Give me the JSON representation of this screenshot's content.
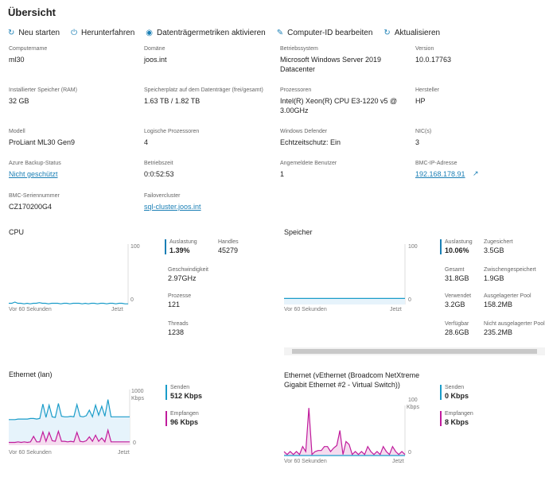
{
  "title": "Übersicht",
  "toolbar": [
    {
      "label": "Neu starten",
      "icon": "restart-icon"
    },
    {
      "label": "Herunterfahren",
      "icon": "power-icon"
    },
    {
      "label": "Datenträgermetriken aktivieren",
      "icon": "disk-metrics-icon"
    },
    {
      "label": "Computer-ID bearbeiten",
      "icon": "pencil-icon"
    },
    {
      "label": "Aktualisieren",
      "icon": "refresh-icon"
    }
  ],
  "props": [
    {
      "label": "Computername",
      "value": "ml30"
    },
    {
      "label": "Domäne",
      "value": "joos.int"
    },
    {
      "label": "Betriebssystem",
      "value": "Microsoft Windows Server 2019 Datacenter"
    },
    {
      "label": "Version",
      "value": "10.0.17763"
    },
    {
      "label": "Installierter Speicher (RAM)",
      "value": "32 GB"
    },
    {
      "label": "Speicherplatz auf dem Datenträger (frei/gesamt)",
      "value": "1.63 TB / 1.82 TB"
    },
    {
      "label": "Prozessoren",
      "value": "Intel(R) Xeon(R) CPU E3-1220 v5 @ 3.00GHz"
    },
    {
      "label": "Hersteller",
      "value": "HP"
    },
    {
      "label": "Modell",
      "value": "ProLiant ML30 Gen9"
    },
    {
      "label": "Logische Prozessoren",
      "value": "4"
    },
    {
      "label": "Windows Defender",
      "value": "Echtzeitschutz: Ein"
    },
    {
      "label": "NIC(s)",
      "value": "3"
    },
    {
      "label": "Azure Backup-Status",
      "value": "Nicht geschützt",
      "link": true
    },
    {
      "label": "Betriebszeit",
      "value": "0:0:52:53"
    },
    {
      "label": "Angemeldete Benutzer",
      "value": "1"
    },
    {
      "label": "BMC-IP-Adresse",
      "value": "192.168.178.91",
      "link": true
    },
    {
      "label": "BMC-Seriennummer",
      "value": "CZ170200G4"
    },
    {
      "label": "Failovercluster",
      "value": "sql-cluster.joos.int",
      "link": true
    }
  ],
  "cpu": {
    "title": "CPU",
    "ymax": "100",
    "ymin": "0",
    "from": "Vor 60 Sekunden",
    "to": "Jetzt",
    "stats": {
      "auslastung_label": "Auslastung",
      "auslastung": "1.39%",
      "handles_label": "Handles",
      "handles": "45279",
      "speed_label": "Geschwindigkeit",
      "speed": "2.97GHz",
      "proc_label": "Prozesse",
      "proc": "121",
      "threads_label": "Threads",
      "threads": "1238"
    },
    "series": [
      2,
      2,
      4,
      2,
      2,
      1,
      2,
      1,
      2,
      2,
      3,
      2,
      2,
      1,
      2,
      2,
      2,
      1,
      2,
      2,
      1,
      2,
      2,
      2,
      1,
      2,
      1,
      2,
      2,
      1,
      2,
      2,
      1,
      2,
      2,
      1,
      2,
      2,
      1,
      1
    ]
  },
  "mem": {
    "title": "Speicher",
    "ymax": "100",
    "ymin": "0",
    "from": "Vor 60 Sekunden",
    "to": "Jetzt",
    "stats": {
      "auslastung_label": "Auslastung",
      "auslastung": "10.06%",
      "zug_label": "Zugesichert",
      "zug": "3.5GB",
      "ges_label": "Gesamt",
      "ges": "31.8GB",
      "zw_label": "Zwischengespeichert",
      "zw": "1.9GB",
      "verw_label": "Verwendet",
      "verw": "3.2GB",
      "ap_label": "Ausgelagerter Pool",
      "ap": "158.2MB",
      "verf_label": "Verfügbar",
      "verf": "28.6GB",
      "nap_label": "Nicht ausgelagerter Pool",
      "nap": "235.2MB"
    },
    "series": [
      10,
      10,
      10,
      10,
      10,
      10,
      10,
      10,
      10,
      10,
      10,
      10,
      10,
      10,
      10,
      10,
      10,
      10,
      10,
      10,
      10,
      10,
      10,
      10,
      10,
      10,
      10,
      10,
      10,
      10,
      10,
      10,
      10,
      10,
      10,
      10,
      10,
      10,
      10,
      10
    ]
  },
  "eth1": {
    "title": "Ethernet (lan)",
    "ymax": "1000",
    "unit": "Kbps",
    "ymin": "0",
    "from": "Vor 60 Sekunden",
    "to": "Jetzt",
    "send_label": "Senden",
    "send": "512 Kbps",
    "recv_label": "Empfangen",
    "recv": "96 Kbps",
    "send_series": [
      460,
      460,
      460,
      470,
      470,
      470,
      470,
      480,
      480,
      470,
      480,
      740,
      500,
      720,
      510,
      500,
      750,
      520,
      510,
      510,
      520,
      510,
      730,
      520,
      510,
      530,
      630,
      510,
      720,
      540,
      700,
      520,
      820,
      510,
      510,
      510,
      510,
      510,
      510,
      510
    ],
    "recv_series": [
      50,
      50,
      50,
      60,
      50,
      60,
      50,
      60,
      160,
      60,
      60,
      240,
      70,
      230,
      80,
      70,
      250,
      70,
      70,
      60,
      70,
      60,
      230,
      70,
      60,
      80,
      150,
      70,
      180,
      70,
      130,
      60,
      270,
      60,
      60,
      60,
      60,
      60,
      60,
      60
    ]
  },
  "eth2": {
    "title": "Ethernet (vEthernet (Broadcom NetXtreme Gigabit Ethernet #2 - Virtual Switch))",
    "ymax": "100",
    "unit": "Kbps",
    "ymin": "0",
    "from": "Vor 60 Sekunden",
    "to": "Jetzt",
    "send_label": "Senden",
    "send": "0 Kbps",
    "recv_label": "Empfangen",
    "recv": "8 Kbps",
    "send_series": [
      0,
      0,
      0,
      0,
      0,
      0,
      0,
      0,
      0,
      0,
      0,
      0,
      0,
      0,
      0,
      0,
      0,
      0,
      0,
      0,
      0,
      0,
      0,
      0,
      0,
      0,
      0,
      0,
      0,
      0,
      0,
      0,
      0,
      0,
      0,
      0,
      0,
      0,
      0,
      0
    ],
    "recv_series": [
      8,
      2,
      8,
      2,
      8,
      2,
      18,
      8,
      95,
      2,
      8,
      10,
      10,
      18,
      18,
      8,
      15,
      20,
      50,
      2,
      28,
      22,
      2,
      8,
      2,
      8,
      2,
      18,
      8,
      2,
      8,
      2,
      18,
      8,
      2,
      18,
      8,
      2,
      8,
      2
    ]
  },
  "colors": {
    "accent": "#1a7fb5",
    "send": "#1a9cc9",
    "recv": "#c01b9c",
    "fill_send": "#e6f3fb",
    "fill_recv": "#f5dcef"
  }
}
